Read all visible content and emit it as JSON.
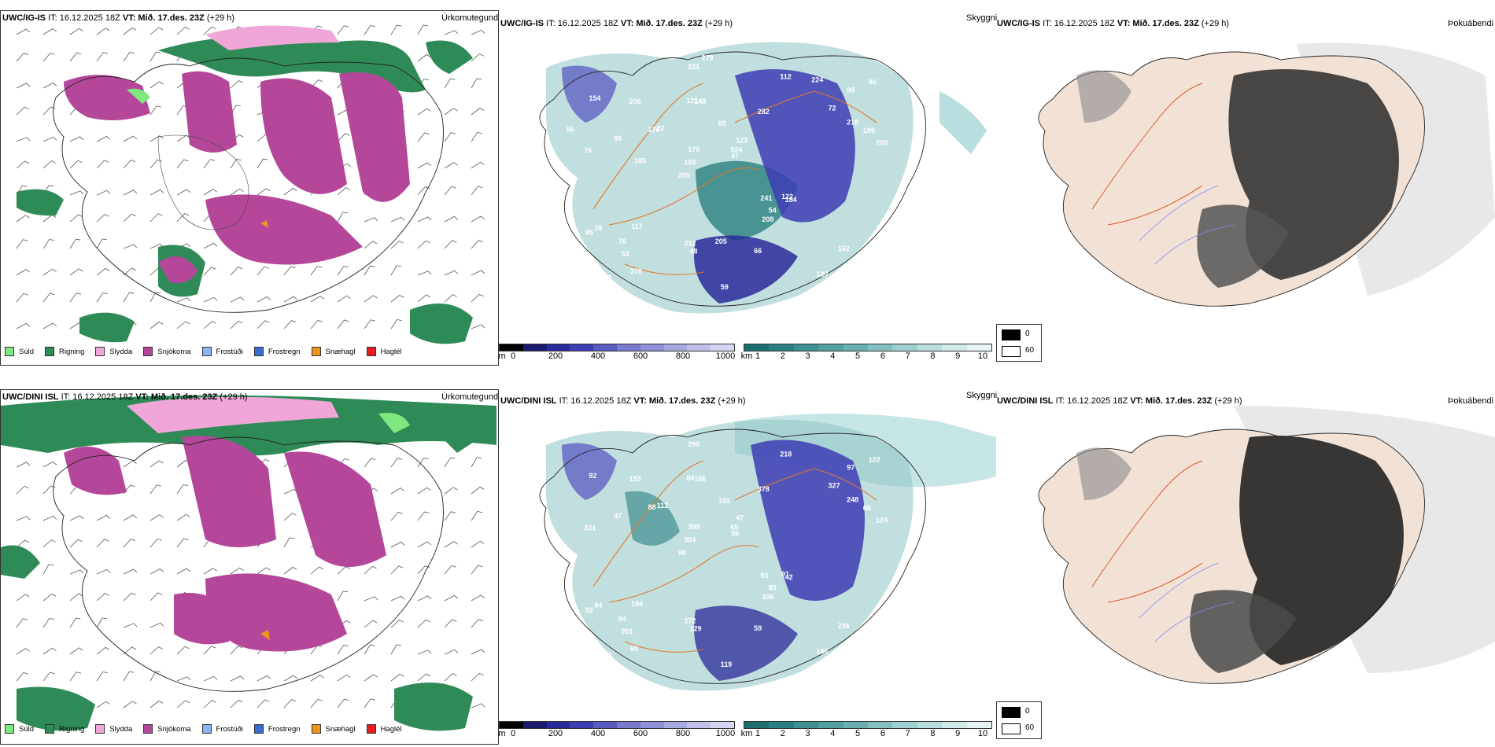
{
  "rows": [
    {
      "model": "UWC/IG-IS",
      "run": "IT: 16.12.2025 18Z",
      "valid_label": "VT:",
      "valid": "Mið. 17.des. 23Z",
      "lead": "(+29 h)"
    },
    {
      "model": "UWC/DINI ISL",
      "run": "IT: 16.12.2025 18Z",
      "valid_label": "VT:",
      "valid": "Mið. 17.des. 23Z",
      "lead": "(+29 h)"
    }
  ],
  "panel_titles": {
    "precip_type": "Úrkomutegund",
    "visibility": "Skyggni",
    "fog": "Þokuábendi"
  },
  "precip_legend": [
    {
      "label": "Súld",
      "color": "#7ee87e"
    },
    {
      "label": "Rigning",
      "color": "#2e8b57"
    },
    {
      "label": "Slydda",
      "color": "#f0a6d8"
    },
    {
      "label": "Snjókoma",
      "color": "#b5479a"
    },
    {
      "label": "Frostúði",
      "color": "#8ab4f0"
    },
    {
      "label": "Frostregn",
      "color": "#3a6fd0"
    },
    {
      "label": "Snæhagl",
      "color": "#f0921e"
    },
    {
      "label": "Haglél",
      "color": "#e81c1c"
    }
  ],
  "height_scale": {
    "unit": "m",
    "ticks": [
      "0",
      "200",
      "400",
      "600",
      "800",
      "1000"
    ],
    "colors": [
      "#000000",
      "#1a1a6e",
      "#2a2a9a",
      "#3d3db4",
      "#5a5ac0",
      "#7a7acc",
      "#9090d8",
      "#a8a8e0",
      "#c0c0ea",
      "#d6d6f2"
    ]
  },
  "visibility_scale": {
    "unit": "km",
    "ticks": [
      "1",
      "2",
      "3",
      "4",
      "5",
      "6",
      "7",
      "8",
      "9",
      "10"
    ],
    "colors": [
      "#1a6e6e",
      "#2a8080",
      "#3c9090",
      "#52a0a0",
      "#6ab0b0",
      "#84c0c0",
      "#9ed0d0",
      "#b8dede",
      "#d0eaea",
      "#e8f4f4"
    ]
  },
  "fog_legend": {
    "labels": [
      "0",
      "60"
    ],
    "colors": [
      "#000000",
      "#ffffff"
    ]
  },
  "visibility_labels_top": [
    "99",
    "76",
    "98",
    "205",
    "282",
    "107",
    "121",
    "85",
    "38",
    "22",
    "102",
    "53",
    "148",
    "123",
    "184",
    "154",
    "221",
    "203",
    "241",
    "218",
    "193",
    "212",
    "179",
    "206",
    "112",
    "117",
    "120",
    "162",
    "122",
    "59",
    "176",
    "86",
    "208",
    "370",
    "189",
    "924",
    "54",
    "48",
    "47",
    "85",
    "72",
    "96",
    "54",
    "66",
    "76",
    "260",
    "137",
    "205",
    "224",
    "279",
    "185",
    "96"
  ],
  "visibility_labels_bottom": [
    "189",
    "331",
    "97",
    "98",
    "378",
    "143",
    "84",
    "150",
    "84",
    "112",
    "95",
    "201",
    "106",
    "47",
    "42",
    "92",
    "296",
    "124",
    "95",
    "248",
    "304",
    "172",
    "399",
    "153",
    "218",
    "194",
    "186",
    "236",
    "91",
    "119",
    "88",
    "47",
    "106",
    "69",
    "66",
    "65",
    "76",
    "129",
    "38",
    "52",
    "327",
    "122",
    "85",
    "59",
    "84"
  ]
}
